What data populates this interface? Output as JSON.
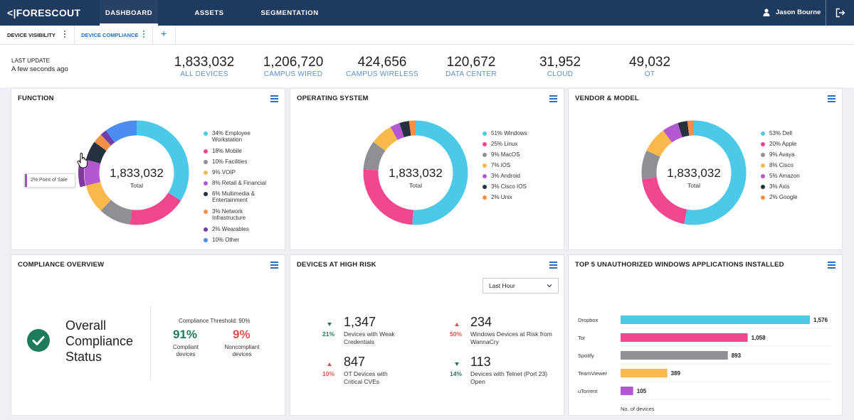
{
  "brand": {
    "name": "FORESCOUT",
    "mark": "<|"
  },
  "nav": {
    "tabs": [
      {
        "label": "DASHBOARD",
        "active": true
      },
      {
        "label": "ASSETS"
      },
      {
        "label": "SEGMENTATION"
      }
    ],
    "user_name": "Jason Bourne"
  },
  "subtabs": [
    {
      "label": "DEVICE VISIBILITY"
    },
    {
      "label": "DEVICE COMPLIANCE",
      "active": true
    }
  ],
  "header": {
    "last_update_label": "LAST UPDATE",
    "last_update_value": "A few seconds ago",
    "stats": [
      {
        "value": "1,833,032",
        "label": "ALL DEVICES"
      },
      {
        "value": "1,206,720",
        "label": "CAMPUS WIRED"
      },
      {
        "value": "424,656",
        "label": "CAMPUS WIRELESS"
      },
      {
        "value": "120,672",
        "label": "DATA CENTER"
      },
      {
        "value": "31,952",
        "label": "CLOUD"
      },
      {
        "value": "49,032",
        "label": "OT"
      }
    ]
  },
  "function_card": {
    "title": "FUNCTION",
    "total": "1,833,032",
    "total_label": "Total",
    "tooltip": "2% Point of Sale"
  },
  "os_card": {
    "title": "OPERATING SYSTEM",
    "total": "1,833,032",
    "total_label": "Total"
  },
  "vendor_card": {
    "title": "VENDOR & MODEL",
    "total": "1,833,032",
    "total_label": "Total"
  },
  "compliance": {
    "title": "COMPLIANCE OVERVIEW",
    "status_title": "Overall Compliance Status",
    "threshold": "Compliance Threshold: 90%",
    "compliant_pct": "91%",
    "compliant_label": "Compliant devices",
    "noncompliant_pct": "9%",
    "noncompliant_label": "Noncompliant devices"
  },
  "risk": {
    "title": "DEVICES AT HIGH RISK",
    "select_value": "Last Hour",
    "items": [
      {
        "count": "1,347",
        "label": "Devices with Weak Credentials",
        "pct": "21%",
        "trend": "down"
      },
      {
        "count": "234",
        "label": "Windows Devices at Risk from WannaCry",
        "pct": "50%",
        "trend": "up"
      },
      {
        "count": "847",
        "label": "OT Devices with Critical CVEs",
        "pct": "10%",
        "trend": "up"
      },
      {
        "count": "113",
        "label": "Devices with Telnet (Port 23) Open",
        "pct": "14%",
        "trend": "down"
      }
    ]
  },
  "apps_card": {
    "title": "TOP 5 UNAUTHORIZED WINDOWS APPLICATIONS INSTALLED"
  },
  "colors": {
    "cyan": "#4cc9e8",
    "pink": "#f0478f",
    "gray": "#8e9095",
    "amber": "#f9b94a",
    "purple": "#b458d2",
    "dark": "#253140",
    "orange": "#f39047",
    "violet": "#6e3fa8",
    "blue": "#4a8cf0",
    "accent": "#1a73c8",
    "green": "#1e7b5a",
    "red": "#d9534f"
  },
  "chart_data": [
    {
      "type": "pie",
      "variant": "donut",
      "title": "FUNCTION",
      "slices": [
        {
          "label": "34% Employee Workstation",
          "value": 34,
          "color": "#4cc9e8"
        },
        {
          "label": "18% Mobile",
          "value": 18,
          "color": "#f0478f"
        },
        {
          "label": "10% Facilities",
          "value": 10,
          "color": "#8e9095"
        },
        {
          "label": "9% VOIP",
          "value": 9,
          "color": "#f9b94a"
        },
        {
          "label": "8% Retail & Financial",
          "value": 8,
          "color": "#b458d2"
        },
        {
          "label": "6% Multimedia & Entertainment",
          "value": 6,
          "color": "#253140"
        },
        {
          "label": "3% Network Infrastructure",
          "value": 3,
          "color": "#f39047"
        },
        {
          "label": "2% Wearables",
          "value": 2,
          "color": "#6e3fa8"
        },
        {
          "label": "10% Other",
          "value": 10,
          "color": "#4a8cf0"
        }
      ]
    },
    {
      "type": "pie",
      "variant": "donut",
      "title": "OPERATING SYSTEM",
      "slices": [
        {
          "label": "51% Windows",
          "value": 51,
          "color": "#4cc9e8"
        },
        {
          "label": "25% Linux",
          "value": 25,
          "color": "#f0478f"
        },
        {
          "label": "9% MacOS",
          "value": 9,
          "color": "#8e9095"
        },
        {
          "label": "7% iOS",
          "value": 7,
          "color": "#f9b94a"
        },
        {
          "label": "3% Android",
          "value": 3,
          "color": "#b458d2"
        },
        {
          "label": "3% Cisco IOS",
          "value": 3,
          "color": "#253140"
        },
        {
          "label": "2% Unix",
          "value": 2,
          "color": "#f39047"
        }
      ]
    },
    {
      "type": "pie",
      "variant": "donut",
      "title": "VENDOR & MODEL",
      "slices": [
        {
          "label": "53% Dell",
          "value": 53,
          "color": "#4cc9e8"
        },
        {
          "label": "20% Apple",
          "value": 20,
          "color": "#f0478f"
        },
        {
          "label": "9% Avaya",
          "value": 9,
          "color": "#8e9095"
        },
        {
          "label": "8% Cisco",
          "value": 8,
          "color": "#f9b94a"
        },
        {
          "label": "5% Amazon",
          "value": 5,
          "color": "#b458d2"
        },
        {
          "label": "3% Axis",
          "value": 3,
          "color": "#253140"
        },
        {
          "label": "2% Google",
          "value": 2,
          "color": "#f39047"
        }
      ]
    },
    {
      "type": "bar",
      "orientation": "horizontal",
      "title": "TOP 5 UNAUTHORIZED WINDOWS APPLICATIONS INSTALLED",
      "categories": [
        "Dropbox",
        "Tor",
        "Spotify",
        "TeamViewer",
        "uTorrent"
      ],
      "values": [
        1576,
        1058,
        893,
        389,
        105
      ],
      "value_labels": [
        "1,576",
        "1,058",
        "893",
        "389",
        "105"
      ],
      "colors": [
        "#4cc9e8",
        "#f0478f",
        "#8e9095",
        "#f9b94a",
        "#b458d2"
      ],
      "xlabel": "No. of devices",
      "xlim": [
        0,
        1576
      ]
    }
  ]
}
